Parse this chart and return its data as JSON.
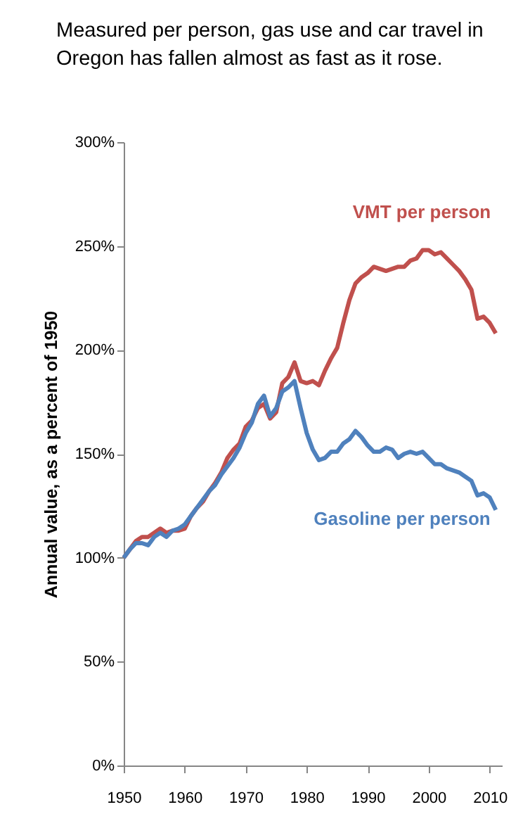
{
  "chart_data": {
    "type": "line",
    "title": "Measured per person, gas use and car travel in Oregon has fallen almost as fast as it rose.",
    "ylabel": "Annual value, as a percent of 1950",
    "x": [
      1950,
      1951,
      1952,
      1953,
      1954,
      1955,
      1956,
      1957,
      1958,
      1959,
      1960,
      1961,
      1962,
      1963,
      1964,
      1965,
      1966,
      1967,
      1968,
      1969,
      1970,
      1971,
      1972,
      1973,
      1974,
      1975,
      1976,
      1977,
      1978,
      1979,
      1980,
      1981,
      1982,
      1983,
      1984,
      1985,
      1986,
      1987,
      1988,
      1989,
      1990,
      1991,
      1992,
      1993,
      1994,
      1995,
      1996,
      1997,
      1998,
      1999,
      2000,
      2001,
      2002,
      2003,
      2004,
      2005,
      2006,
      2007,
      2008,
      2009,
      2010,
      2011
    ],
    "series": [
      {
        "name": "VMT per person",
        "color": "#c0504d",
        "values": [
          100,
          104,
          108,
          110,
          110,
          112,
          114,
          112,
          113,
          113,
          114,
          120,
          124,
          127,
          132,
          136,
          141,
          148,
          152,
          155,
          163,
          166,
          172,
          174,
          167,
          170,
          184,
          187,
          194,
          185,
          184,
          185,
          183,
          190,
          196,
          201,
          213,
          224,
          232,
          235,
          237,
          240,
          239,
          238,
          239,
          240,
          240,
          243,
          244,
          248,
          248,
          246,
          247,
          244,
          241,
          238,
          234,
          229,
          215,
          216,
          213,
          208
        ]
      },
      {
        "name": "Gasoline per person",
        "color": "#4f81bd",
        "values": [
          100,
          104,
          107,
          107,
          106,
          110,
          112,
          110,
          113,
          114,
          116,
          120,
          124,
          128,
          132,
          135,
          140,
          144,
          148,
          153,
          160,
          165,
          174,
          178,
          168,
          172,
          180,
          182,
          185,
          172,
          160,
          152,
          147,
          148,
          151,
          151,
          155,
          157,
          161,
          158,
          154,
          151,
          151,
          153,
          152,
          148,
          150,
          151,
          150,
          151,
          148,
          145,
          145,
          143,
          142,
          141,
          139,
          137,
          130,
          131,
          129,
          123
        ]
      }
    ],
    "xlim": [
      1950,
      2012
    ],
    "xticks": [
      1950,
      1960,
      1970,
      1980,
      1990,
      2000,
      2010
    ],
    "ylim": [
      0,
      300
    ],
    "yticks": [
      {
        "value": 0,
        "label": "0%"
      },
      {
        "value": 50,
        "label": "50%"
      },
      {
        "value": 100,
        "label": "100%"
      },
      {
        "value": 150,
        "label": "150%"
      },
      {
        "value": 200,
        "label": "200%"
      },
      {
        "value": 250,
        "label": "250%"
      },
      {
        "value": 300,
        "label": "300%"
      }
    ],
    "grid": false,
    "legend": false,
    "line_style": "solid",
    "marker": "none"
  }
}
